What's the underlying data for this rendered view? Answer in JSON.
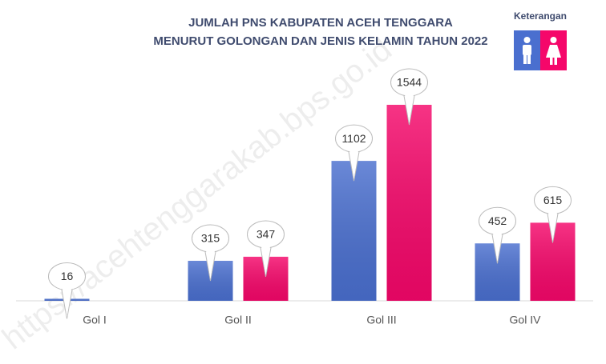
{
  "chart_data": {
    "type": "bar",
    "title": [
      "JUMLAH PNS KABUPATEN ACEH TENGGARA",
      "MENURUT GOLONGAN DAN JENIS KELAMIN TAHUN 2022"
    ],
    "legend_title": "Keterangan",
    "watermark": "https://acehtenggarakab.bps.go.id",
    "categories": [
      "Gol I",
      "Gol II",
      "Gol III",
      "Gol IV"
    ],
    "series": [
      {
        "color": "#4a6fcf",
        "values": [
          16,
          315,
          1102,
          452
        ]
      },
      {
        "color": "#f5076a",
        "values": [
          null,
          347,
          1544,
          615
        ]
      }
    ]
  }
}
